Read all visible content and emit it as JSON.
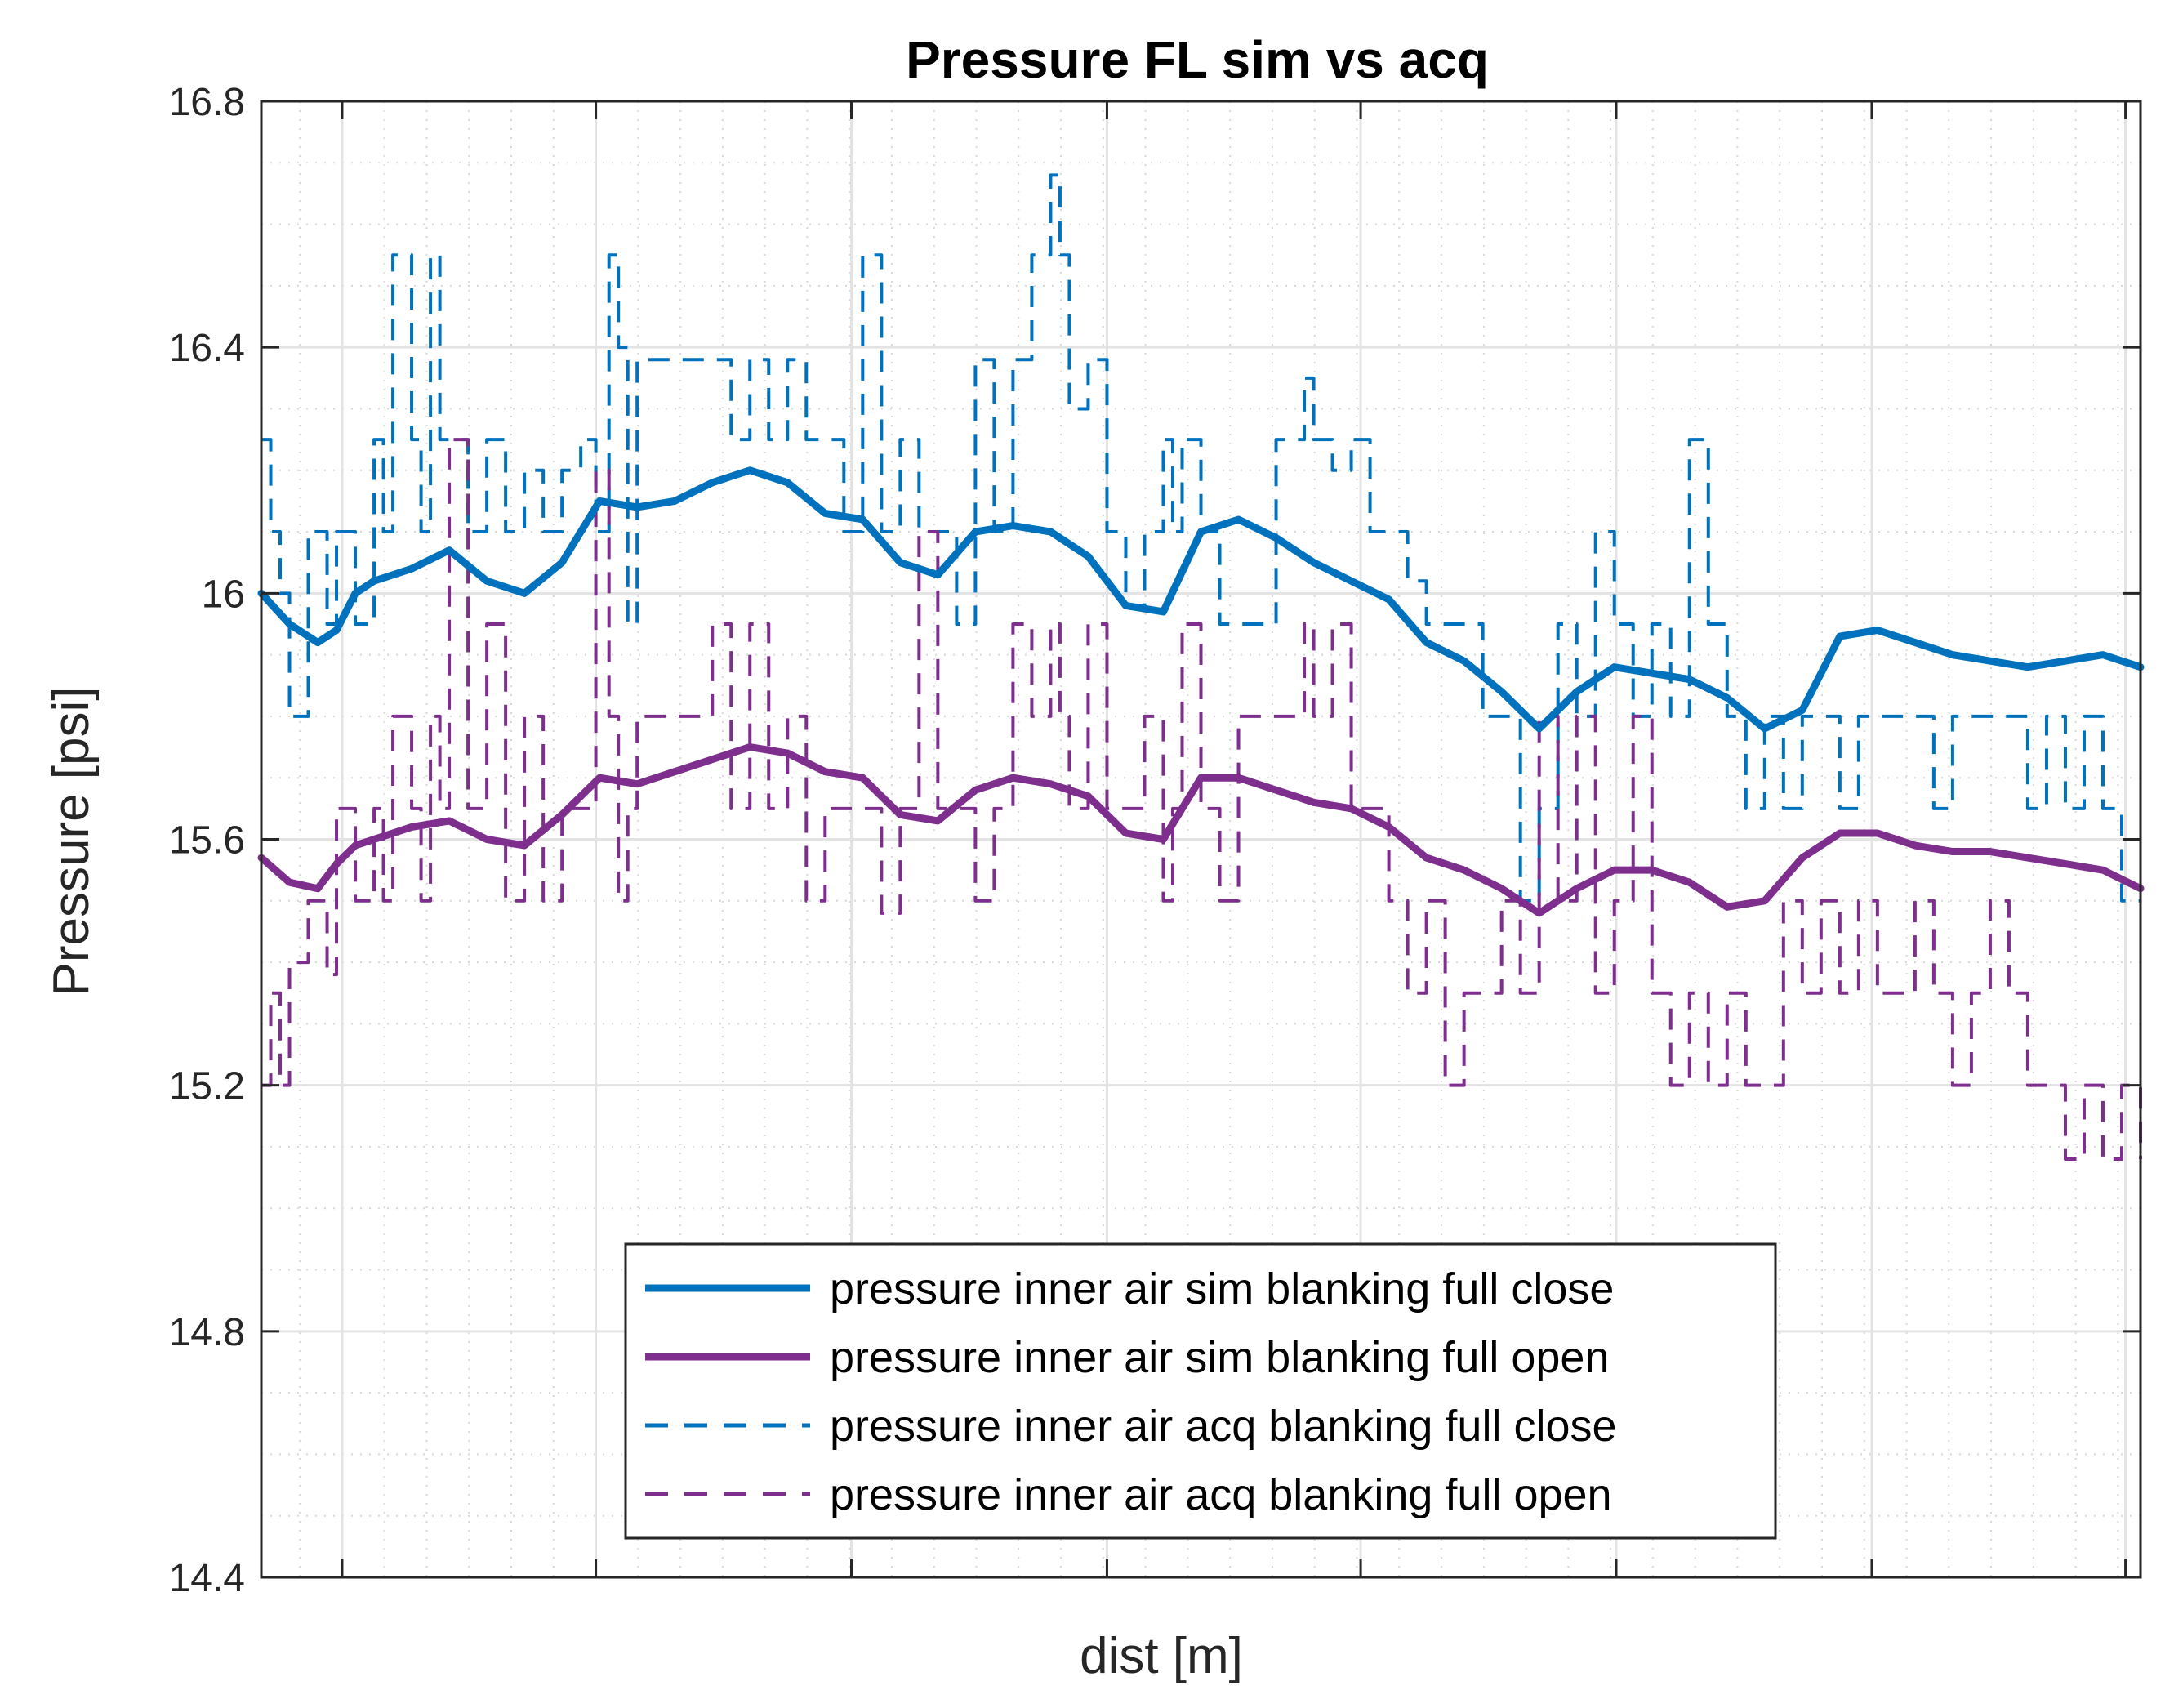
{
  "chart_data": {
    "type": "line",
    "title": "Pressure FL sim vs acq",
    "xlabel": "dist [m]",
    "ylabel": "Pressure [psi]",
    "ylim": [
      14.4,
      16.8
    ],
    "xlim": [
      0,
      100
    ],
    "yticks": [
      14.4,
      14.8,
      15.2,
      15.6,
      16.0,
      16.4,
      16.8
    ],
    "ytick_labels": [
      "14.4",
      "14.8",
      "15.2",
      "15.6",
      "16",
      "16.4",
      "16.8"
    ],
    "xticks": [
      4.3,
      17.8,
      31.4,
      45.0,
      58.5,
      72.1,
      85.7,
      99.2
    ],
    "grid": true,
    "minor_grid": true,
    "legend_position": "bottom-center",
    "series": [
      {
        "name": "pressure inner air sim blanking full close",
        "color": "#0072bd",
        "style": "solid",
        "x": [
          0,
          1.5,
          3,
          4,
          5,
          6,
          7,
          8,
          10,
          12,
          14,
          16,
          18,
          20,
          22,
          24,
          26,
          28,
          30,
          32,
          34,
          36,
          38,
          40,
          42,
          44,
          46,
          48,
          50,
          52,
          54,
          56,
          58,
          60,
          62,
          64,
          66,
          68,
          70,
          72,
          74,
          76,
          78,
          80,
          82,
          84,
          86,
          88,
          90,
          92,
          94,
          96,
          98,
          100
        ],
        "values": [
          16.0,
          15.95,
          15.92,
          15.94,
          16.0,
          16.02,
          16.03,
          16.04,
          16.07,
          16.02,
          16.0,
          16.05,
          16.15,
          16.14,
          16.15,
          16.18,
          16.2,
          16.18,
          16.13,
          16.12,
          16.05,
          16.03,
          16.1,
          16.11,
          16.1,
          16.06,
          15.98,
          15.97,
          16.1,
          16.12,
          16.09,
          16.05,
          16.02,
          15.99,
          15.92,
          15.89,
          15.84,
          15.78,
          15.84,
          15.88,
          15.87,
          15.86,
          15.83,
          15.78,
          15.81,
          15.93,
          15.94,
          15.92,
          15.9,
          15.89,
          15.88,
          15.89,
          15.9,
          15.88
        ]
      },
      {
        "name": "pressure inner air sim blanking full open",
        "color": "#7e2f8e",
        "style": "solid",
        "x": [
          0,
          1.5,
          3,
          4,
          5,
          6,
          7,
          8,
          10,
          12,
          14,
          16,
          18,
          20,
          22,
          24,
          26,
          28,
          30,
          32,
          34,
          36,
          38,
          40,
          42,
          44,
          46,
          48,
          50,
          52,
          54,
          56,
          58,
          60,
          62,
          64,
          66,
          68,
          70,
          72,
          74,
          76,
          78,
          80,
          82,
          84,
          86,
          88,
          90,
          92,
          94,
          96,
          98,
          100
        ],
        "values": [
          15.57,
          15.53,
          15.52,
          15.56,
          15.59,
          15.6,
          15.61,
          15.62,
          15.63,
          15.6,
          15.59,
          15.64,
          15.7,
          15.69,
          15.71,
          15.73,
          15.75,
          15.74,
          15.71,
          15.7,
          15.64,
          15.63,
          15.68,
          15.7,
          15.69,
          15.67,
          15.61,
          15.6,
          15.7,
          15.7,
          15.68,
          15.66,
          15.65,
          15.62,
          15.57,
          15.55,
          15.52,
          15.48,
          15.52,
          15.55,
          15.55,
          15.53,
          15.49,
          15.5,
          15.57,
          15.61,
          15.61,
          15.59,
          15.58,
          15.58,
          15.57,
          15.56,
          15.55,
          15.52
        ]
      },
      {
        "name": "pressure inner air acq blanking full close",
        "color": "#0072bd",
        "style": "dashed",
        "x": [
          0,
          0.5,
          1,
          1.5,
          2.5,
          3.5,
          4,
          5,
          6,
          6.5,
          7,
          8,
          8.5,
          9,
          9.5,
          10,
          11,
          12,
          13,
          14,
          15,
          16,
          17,
          17.8,
          18.5,
          19,
          19.5,
          20,
          22,
          24,
          25,
          26,
          27,
          28,
          29,
          30,
          31,
          32,
          33,
          34,
          35,
          36,
          37,
          38,
          39,
          40,
          41,
          42,
          42.5,
          43,
          44,
          45,
          46,
          47,
          48,
          48.5,
          49,
          50,
          51,
          52,
          53,
          54,
          55,
          55.5,
          56,
          57,
          58,
          59,
          60,
          61,
          62,
          63,
          64,
          65,
          66,
          67,
          68,
          69,
          70,
          71,
          72,
          73,
          74,
          75,
          76,
          77,
          78,
          79,
          80,
          81,
          82,
          83,
          84,
          85,
          86,
          87,
          88,
          89,
          90,
          91,
          92,
          93,
          94,
          95,
          96,
          97,
          98,
          99,
          100
        ],
        "values": [
          16.25,
          16.1,
          16.0,
          15.8,
          16.1,
          15.95,
          16.1,
          15.95,
          16.25,
          16.1,
          16.55,
          16.25,
          16.1,
          16.55,
          16.25,
          16.25,
          16.1,
          16.25,
          16.1,
          16.2,
          16.1,
          16.2,
          16.25,
          16.1,
          16.55,
          16.4,
          15.95,
          16.38,
          16.38,
          16.38,
          16.25,
          16.38,
          16.25,
          16.38,
          16.25,
          16.25,
          16.1,
          16.55,
          16.1,
          16.25,
          16.1,
          16.1,
          15.95,
          16.38,
          16.1,
          16.38,
          16.55,
          16.68,
          16.55,
          16.3,
          16.38,
          16.1,
          15.98,
          16.1,
          16.25,
          16.1,
          16.25,
          16.1,
          15.95,
          15.95,
          15.95,
          16.25,
          16.25,
          16.35,
          16.25,
          16.2,
          16.25,
          16.1,
          16.1,
          16.02,
          15.95,
          15.95,
          15.95,
          15.8,
          15.8,
          15.5,
          15.65,
          15.95,
          15.8,
          16.1,
          15.95,
          15.8,
          15.95,
          15.8,
          16.25,
          15.95,
          15.8,
          15.65,
          15.8,
          15.65,
          15.8,
          15.8,
          15.65,
          15.8,
          15.8,
          15.8,
          15.8,
          15.65,
          15.8,
          15.8,
          15.8,
          15.8,
          15.65,
          15.8,
          15.65,
          15.8,
          15.65,
          15.5,
          15.5
        ]
      },
      {
        "name": "pressure inner air acq blanking full open",
        "color": "#7e2f8e",
        "style": "dashed",
        "x": [
          0,
          0.5,
          1,
          1.5,
          2.5,
          3.5,
          4,
          5,
          6,
          6.5,
          7,
          8,
          8.5,
          9,
          9.5,
          10,
          11,
          12,
          13,
          14,
          15,
          16,
          17,
          17.8,
          18.5,
          19,
          19.5,
          20,
          22,
          24,
          25,
          26,
          27,
          28,
          29,
          30,
          31,
          32,
          33,
          34,
          35,
          36,
          37,
          38,
          39,
          40,
          41,
          42,
          42.5,
          43,
          44,
          45,
          46,
          47,
          48,
          48.5,
          49,
          50,
          51,
          52,
          53,
          54,
          55,
          55.5,
          56,
          57,
          58,
          59,
          60,
          61,
          62,
          63,
          64,
          65,
          66,
          67,
          68,
          69,
          70,
          71,
          72,
          73,
          74,
          75,
          76,
          77,
          78,
          79,
          80,
          81,
          82,
          83,
          84,
          85,
          86,
          87,
          88,
          89,
          90,
          91,
          92,
          93,
          94,
          95,
          96,
          97,
          98,
          99,
          100
        ],
        "values": [
          15.2,
          15.35,
          15.2,
          15.4,
          15.5,
          15.38,
          15.65,
          15.5,
          15.65,
          15.5,
          15.8,
          15.65,
          15.5,
          15.8,
          15.65,
          16.25,
          15.65,
          15.95,
          15.5,
          15.8,
          15.5,
          15.65,
          15.65,
          16.2,
          15.8,
          15.5,
          15.65,
          15.8,
          15.8,
          15.95,
          15.65,
          15.95,
          15.65,
          15.8,
          15.5,
          15.65,
          15.65,
          15.65,
          15.48,
          15.65,
          16.1,
          15.65,
          15.65,
          15.5,
          15.65,
          15.95,
          15.8,
          15.95,
          15.8,
          15.65,
          15.95,
          15.65,
          15.65,
          15.8,
          15.5,
          15.65,
          15.95,
          15.65,
          15.5,
          15.8,
          15.8,
          15.8,
          15.8,
          15.95,
          15.8,
          15.95,
          15.65,
          15.65,
          15.5,
          15.35,
          15.5,
          15.2,
          15.35,
          15.35,
          15.5,
          15.35,
          15.8,
          15.5,
          15.8,
          15.35,
          15.5,
          15.8,
          15.35,
          15.2,
          15.35,
          15.2,
          15.35,
          15.2,
          15.2,
          15.5,
          15.35,
          15.5,
          15.35,
          15.5,
          15.35,
          15.35,
          15.5,
          15.35,
          15.2,
          15.35,
          15.5,
          15.35,
          15.2,
          15.2,
          15.08,
          15.2,
          15.08,
          15.2,
          15.08
        ]
      }
    ]
  }
}
